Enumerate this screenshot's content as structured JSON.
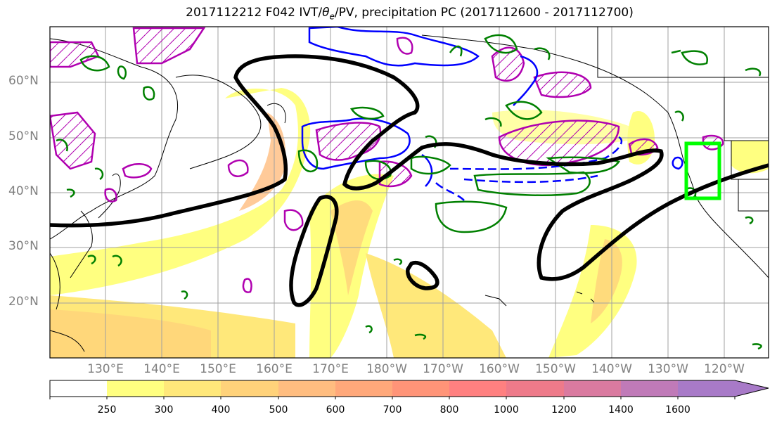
{
  "title": {
    "prefix": "2017112212 F042 IVT/",
    "theta": "θ",
    "theta_sub": "e",
    "suffix": "/PV, precipitation PC (2017112600 - 2017112700)"
  },
  "lat_labels": [
    "60°N",
    "50°N",
    "40°N",
    "30°N",
    "20°N"
  ],
  "lon_labels": [
    "130°E",
    "140°E",
    "150°E",
    "160°E",
    "170°E",
    "180°W",
    "170°W",
    "160°W",
    "150°W",
    "140°W",
    "130°W",
    "120°W"
  ],
  "colorbar": {
    "levels": [
      "250",
      "300",
      "400",
      "500",
      "600",
      "700",
      "800",
      "1000",
      "1200",
      "1400",
      "1600"
    ],
    "colors": [
      "#ffffff",
      "#ffff80",
      "#ffe87a",
      "#ffd27a",
      "#ffbd80",
      "#ffa87a",
      "#ff9478",
      "#ff8080",
      "#ee7a8a",
      "#da7aa0",
      "#c07ab8",
      "#a87ac8"
    ]
  },
  "legend_colors": {
    "ivt_contour": "#000000",
    "theta_e": "#0000ff",
    "pv": "#b000b0",
    "precip": "#008000",
    "target_box": "#00ff00"
  }
}
